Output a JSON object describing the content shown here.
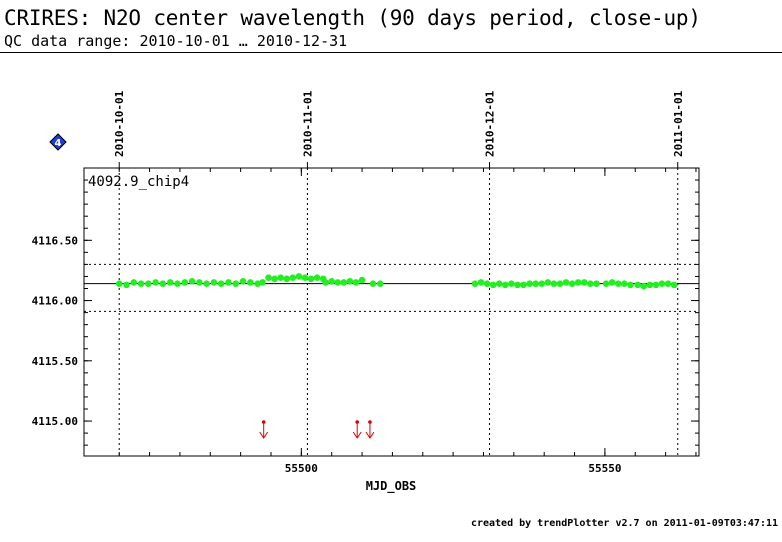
{
  "header": {
    "title": "CRIRES: N2O center wavelength (90 days period, close-up)",
    "subtitle": "QC data range: 2010-10-01 … 2010-12-31"
  },
  "footer": {
    "credit": "created by trendPlotter v2.7 on 2011-01-09T03:47:11"
  },
  "badge": {
    "text": "4",
    "color": "#1f3fd8"
  },
  "chart_data": {
    "type": "scatter",
    "panel_label": "4092.9_chip4",
    "xlabel": "MJD_OBS",
    "ylabel": "",
    "xlim": [
      55464.2,
      55565.5
    ],
    "ylim": [
      4114.71,
      4117.1
    ],
    "x_ticks": [
      55500,
      55550
    ],
    "y_ticks": [
      4115.0,
      4115.5,
      4116.0,
      4116.5
    ],
    "y_tick_labels": [
      "4115.00",
      "4115.50",
      "4116.00",
      "4116.50"
    ],
    "date_markers": [
      {
        "label": "2010-10-01",
        "mjd": 55470
      },
      {
        "label": "2010-11-01",
        "mjd": 55501
      },
      {
        "label": "2010-12-01",
        "mjd": 55531
      },
      {
        "label": "2011-01-01",
        "mjd": 55562
      }
    ],
    "reference_line": 4116.14,
    "limit_lines": [
      4116.3,
      4115.91
    ],
    "grid": false,
    "colors": {
      "points": "#22ee22",
      "outliers": "#dd0000",
      "reference": "#000000"
    },
    "outlier_arrows_x": [
      55493.8,
      55509.2,
      55511.3
    ],
    "series": [
      {
        "x": [
          55470.0,
          55471.2,
          55472.4,
          55473.6,
          55474.8,
          55476.0,
          55477.2,
          55478.4,
          55479.6,
          55480.8,
          55482.0,
          55483.2,
          55484.4,
          55485.6,
          55486.8,
          55488.0,
          55489.2,
          55490.4,
          55491.6,
          55492.8,
          55493.6,
          55494.6,
          55495.6,
          55496.6,
          55497.6,
          55498.6,
          55499.6,
          55500.6,
          55501.6,
          55502.6,
          55503.6,
          55504.0,
          55505.0,
          55506.0,
          55507.0,
          55508.0,
          55509.0,
          55510.0,
          55511.8,
          55513.0,
          55528.6,
          55529.6,
          55530.6,
          55531.6,
          55532.6,
          55533.6,
          55534.6,
          55535.6,
          55536.6,
          55537.6,
          55538.6,
          55539.6,
          55540.6,
          55541.6,
          55542.6,
          55543.6,
          55544.6,
          55545.6,
          55546.6,
          55547.6,
          55548.6,
          55550.2,
          55551.2,
          55552.2,
          55553.2,
          55554.2,
          55555.4,
          55556.4,
          55557.4,
          55558.4,
          55559.4,
          55560.4,
          55561.4
        ],
        "y": [
          4116.14,
          4116.13,
          4116.15,
          4116.14,
          4116.14,
          4116.15,
          4116.14,
          4116.15,
          4116.14,
          4116.15,
          4116.16,
          4116.15,
          4116.14,
          4116.15,
          4116.14,
          4116.15,
          4116.14,
          4116.16,
          4116.15,
          4116.14,
          4116.15,
          4116.19,
          4116.18,
          4116.19,
          4116.18,
          4116.19,
          4116.2,
          4116.19,
          4116.18,
          4116.19,
          4116.18,
          4116.15,
          4116.16,
          4116.15,
          4116.15,
          4116.16,
          4116.15,
          4116.17,
          4116.14,
          4116.14,
          4116.14,
          4116.15,
          4116.14,
          4116.13,
          4116.14,
          4116.13,
          4116.14,
          4116.13,
          4116.13,
          4116.14,
          4116.14,
          4116.14,
          4116.15,
          4116.14,
          4116.14,
          4116.15,
          4116.14,
          4116.15,
          4116.15,
          4116.14,
          4116.14,
          4116.14,
          4116.15,
          4116.14,
          4116.14,
          4116.13,
          4116.13,
          4116.12,
          4116.13,
          4116.13,
          4116.14,
          4116.14,
          4116.13
        ]
      }
    ]
  }
}
